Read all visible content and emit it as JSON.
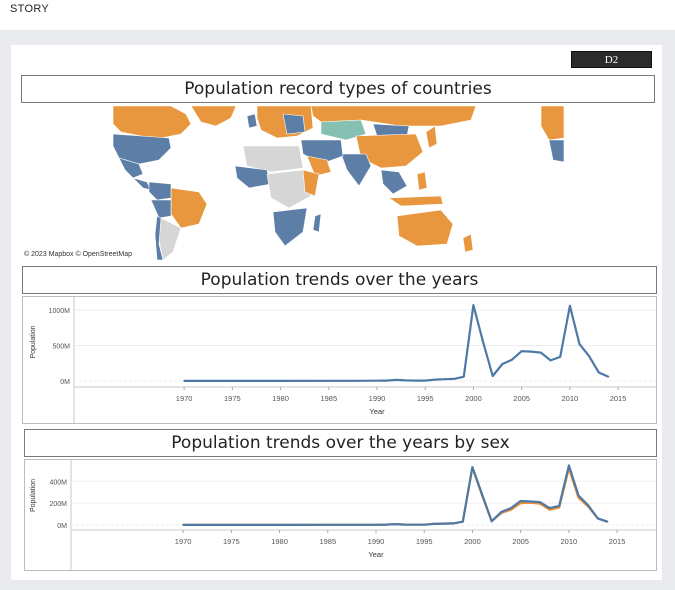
{
  "header": {
    "story_label": "STORY"
  },
  "story_point": {
    "label": "D2"
  },
  "map": {
    "title": "Population record types of countries",
    "credit": "© 2023 Mapbox  © OpenStreetMap",
    "colors": {
      "orange": "#e8973e",
      "blue": "#5d7ea6",
      "teal": "#86c0b2",
      "grey": "#d6d6d6"
    }
  },
  "chart_data": [
    {
      "type": "line",
      "title": "Population trends over the years",
      "xlabel": "Year",
      "ylabel": "Population",
      "xlim": [
        1962,
        2018
      ],
      "ylim": [
        0,
        1100
      ],
      "yticks": [
        {
          "v": 0,
          "label": "0M"
        },
        {
          "v": 500,
          "label": "500M"
        },
        {
          "v": 1000,
          "label": "1000M"
        }
      ],
      "xticks": [
        1970,
        1975,
        1980,
        1985,
        1990,
        1995,
        2000,
        2005,
        2010,
        2015
      ],
      "series": [
        {
          "color": "#4e79a7",
          "points": [
            [
              1970,
              2
            ],
            [
              1980,
              2
            ],
            [
              1988,
              3
            ],
            [
              1990,
              4
            ],
            [
              1991,
              6
            ],
            [
              1992,
              15
            ],
            [
              1993,
              8
            ],
            [
              1994,
              5
            ],
            [
              1995,
              6
            ],
            [
              1996,
              20
            ],
            [
              1997,
              25
            ],
            [
              1998,
              30
            ],
            [
              1999,
              60
            ],
            [
              2000,
              1070
            ],
            [
              2001,
              550
            ],
            [
              2002,
              70
            ],
            [
              2003,
              240
            ],
            [
              2004,
              300
            ],
            [
              2005,
              420
            ],
            [
              2006,
              415
            ],
            [
              2007,
              400
            ],
            [
              2008,
              290
            ],
            [
              2009,
              340
            ],
            [
              2010,
              1060
            ],
            [
              2011,
              520
            ],
            [
              2012,
              350
            ],
            [
              2013,
              120
            ],
            [
              2014,
              60
            ]
          ]
        }
      ]
    },
    {
      "type": "line",
      "title": "Population trends over the years by sex",
      "xlabel": "Year",
      "ylabel": "Population",
      "xlim": [
        1962,
        2018
      ],
      "ylim": [
        0,
        540
      ],
      "yticks": [
        {
          "v": 0,
          "label": "0M"
        },
        {
          "v": 200,
          "label": "200M"
        },
        {
          "v": 400,
          "label": "400M"
        }
      ],
      "xticks": [
        1970,
        1975,
        1980,
        1985,
        1990,
        1995,
        2000,
        2005,
        2010,
        2015
      ],
      "series": [
        {
          "color": "#f28e2b",
          "points": [
            [
              1970,
              1
            ],
            [
              1980,
              1
            ],
            [
              1990,
              2
            ],
            [
              1991,
              3
            ],
            [
              1992,
              8
            ],
            [
              1993,
              4
            ],
            [
              1995,
              3
            ],
            [
              1996,
              10
            ],
            [
              1998,
              15
            ],
            [
              1999,
              30
            ],
            [
              2000,
              525
            ],
            [
              2001,
              270
            ],
            [
              2002,
              35
            ],
            [
              2003,
              110
            ],
            [
              2004,
              140
            ],
            [
              2005,
              200
            ],
            [
              2006,
              205
            ],
            [
              2007,
              195
            ],
            [
              2008,
              140
            ],
            [
              2009,
              160
            ],
            [
              2010,
              520
            ],
            [
              2011,
              250
            ],
            [
              2012,
              170
            ],
            [
              2013,
              60
            ],
            [
              2014,
              30
            ]
          ]
        },
        {
          "color": "#4e79a7",
          "points": [
            [
              1970,
              1
            ],
            [
              1980,
              1
            ],
            [
              1990,
              2
            ],
            [
              1991,
              3
            ],
            [
              1992,
              8
            ],
            [
              1993,
              4
            ],
            [
              1995,
              3
            ],
            [
              1996,
              10
            ],
            [
              1998,
              15
            ],
            [
              1999,
              30
            ],
            [
              2000,
              530
            ],
            [
              2001,
              280
            ],
            [
              2002,
              35
            ],
            [
              2003,
              120
            ],
            [
              2004,
              155
            ],
            [
              2005,
              220
            ],
            [
              2006,
              215
            ],
            [
              2007,
              210
            ],
            [
              2008,
              155
            ],
            [
              2009,
              175
            ],
            [
              2010,
              545
            ],
            [
              2011,
              270
            ],
            [
              2012,
              180
            ],
            [
              2013,
              60
            ],
            [
              2014,
              30
            ]
          ]
        }
      ]
    }
  ]
}
